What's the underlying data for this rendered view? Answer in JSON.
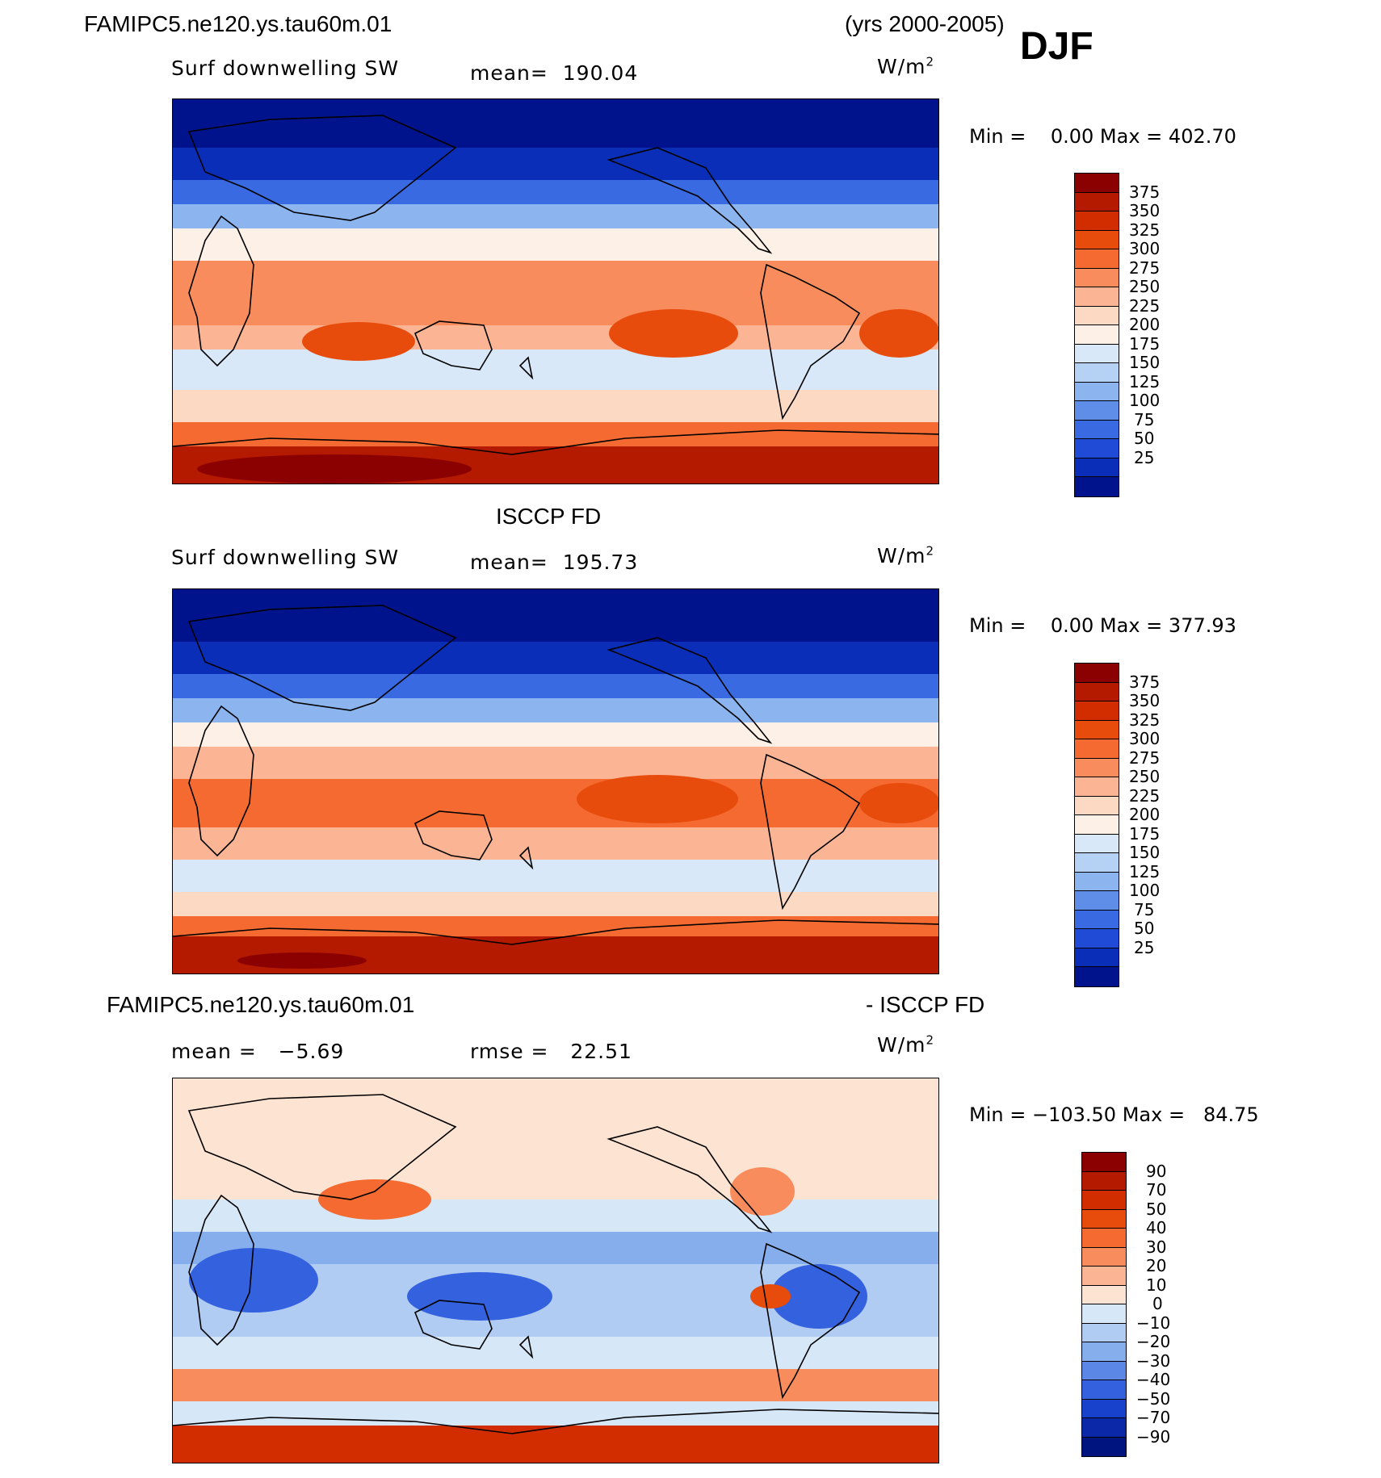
{
  "header": {
    "case_name": "FAMIPC5.ne120.ys.tau60m.01",
    "years": "(yrs 2000-2005)",
    "season": "DJF"
  },
  "panels": [
    {
      "title": "",
      "variable": "Surf downwelling SW",
      "mean_label": "mean=",
      "mean": "190.04",
      "units": "W/m",
      "units_exp": "2",
      "min_label": "Min =",
      "min": "0.00",
      "max_label": "Max =",
      "max": "402.70"
    },
    {
      "title": "ISCCP FD",
      "variable": "Surf downwelling SW",
      "mean_label": "mean=",
      "mean": "195.73",
      "units": "W/m",
      "units_exp": "2",
      "min_label": "Min =",
      "min": "0.00",
      "max_label": "Max =",
      "max": "377.93"
    },
    {
      "title_left": "FAMIPC5.ne120.ys.tau60m.01",
      "title_right": "- ISCCP FD",
      "mean_label": "mean =",
      "mean": "−5.69",
      "rmse_label": "rmse =",
      "rmse": "22.51",
      "units": "W/m",
      "units_exp": "2",
      "min_label": "Min =",
      "min": "−103.50",
      "max_label": "Max =",
      "max": "84.75"
    }
  ],
  "colorbars": {
    "absolute": {
      "labels": [
        "375",
        "350",
        "325",
        "300",
        "275",
        "250",
        "225",
        "200",
        "175",
        "150",
        "125",
        "100",
        "75",
        "50",
        "25"
      ],
      "colors": [
        "#8b0000",
        "#b31a00",
        "#d22d00",
        "#e84c0c",
        "#f46a30",
        "#f88c5c",
        "#fbb595",
        "#fcd9c2",
        "#fdf0e6",
        "#d8e8f8",
        "#b5d2f4",
        "#8cb4ee",
        "#5f8ee8",
        "#3a6ae2",
        "#1f4bd6",
        "#0b2eb8",
        "#00138c"
      ]
    },
    "difference": {
      "labels": [
        "90",
        "70",
        "50",
        "40",
        "30",
        "20",
        "10",
        "0",
        "−10",
        "−20",
        "−30",
        "−40",
        "−50",
        "−70",
        "−90"
      ],
      "colors": [
        "#8b0000",
        "#b31a00",
        "#d22d00",
        "#e84c0c",
        "#f46a30",
        "#f88c5c",
        "#fbb595",
        "#fde3d2",
        "#d6e7f8",
        "#b0ccf2",
        "#86aeec",
        "#5b88e6",
        "#3461de",
        "#1841cc",
        "#0a28a8",
        "#001480"
      ]
    }
  },
  "chart_data": [
    {
      "type": "heatmap",
      "title": "FAMIPC5.ne120.ys.tau60m.01 (yrs 2000-2005) DJF",
      "field": "Surf downwelling SW",
      "units": "W/m2",
      "mean": 190.04,
      "min": 0.0,
      "max": 402.7,
      "contour_levels": [
        25,
        50,
        75,
        100,
        125,
        150,
        175,
        200,
        225,
        250,
        275,
        300,
        325,
        350,
        375
      ]
    },
    {
      "type": "heatmap",
      "title": "ISCCP FD",
      "field": "Surf downwelling SW",
      "units": "W/m2",
      "mean": 195.73,
      "min": 0.0,
      "max": 377.93,
      "contour_levels": [
        25,
        50,
        75,
        100,
        125,
        150,
        175,
        200,
        225,
        250,
        275,
        300,
        325,
        350,
        375
      ]
    },
    {
      "type": "heatmap",
      "title": "FAMIPC5.ne120.ys.tau60m.01 - ISCCP FD",
      "units": "W/m2",
      "mean": -5.69,
      "rmse": 22.51,
      "min": -103.5,
      "max": 84.75,
      "contour_levels": [
        -90,
        -70,
        -50,
        -40,
        -30,
        -20,
        -10,
        0,
        10,
        20,
        30,
        40,
        50,
        70,
        90
      ]
    }
  ]
}
